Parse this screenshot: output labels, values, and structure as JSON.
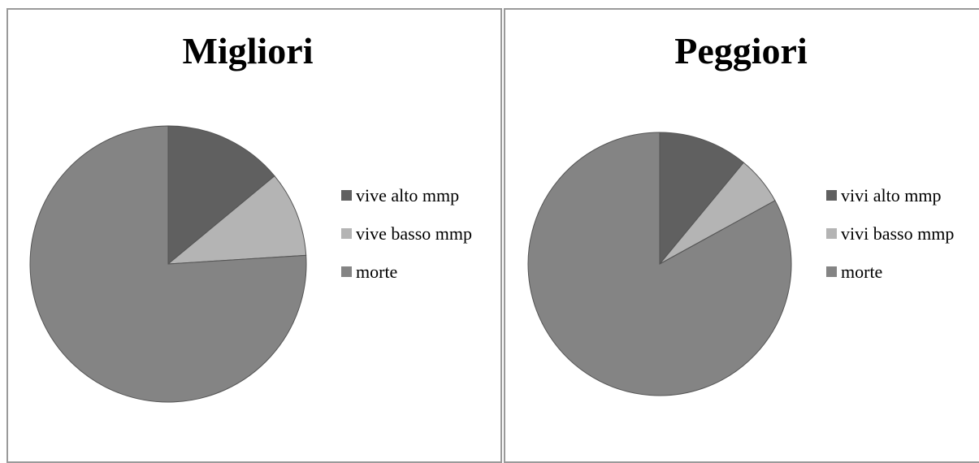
{
  "chart_data": [
    {
      "type": "pie",
      "title": "Migliori",
      "categories": [
        "vive alto mmp",
        "vive basso mmp",
        "morte"
      ],
      "values": [
        14,
        10,
        76
      ],
      "colors": [
        "#606060",
        "#b4b4b4",
        "#848484"
      ],
      "legend": "right"
    },
    {
      "type": "pie",
      "title": "Peggiori",
      "categories": [
        "vivi alto mmp",
        "vivi basso mmp",
        "morte"
      ],
      "values": [
        11,
        6,
        83
      ],
      "colors": [
        "#606060",
        "#b4b4b4",
        "#848484"
      ],
      "legend": "right"
    }
  ]
}
